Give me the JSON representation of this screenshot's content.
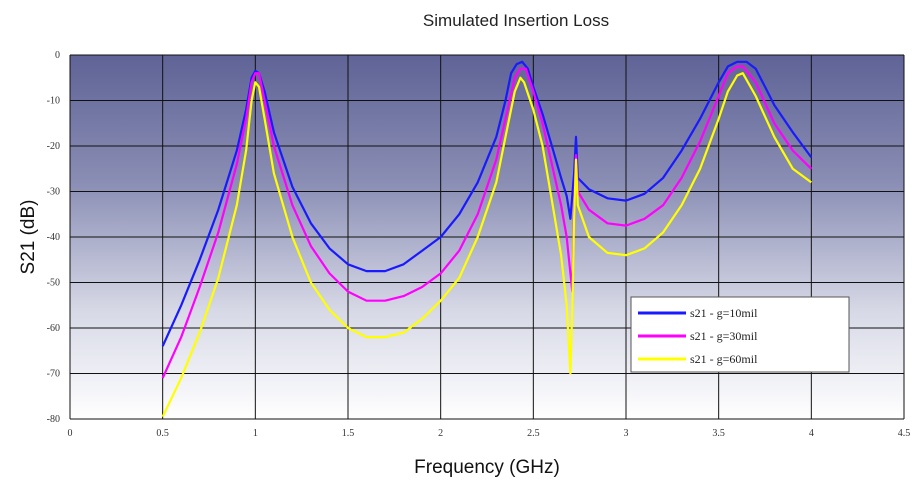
{
  "chart_data": {
    "type": "line",
    "title": "Simulated Insertion Loss",
    "xlabel": "Frequency (GHz)",
    "ylabel": "S21 (dB)",
    "xlim": [
      0,
      4.5
    ],
    "ylim": [
      -80,
      0
    ],
    "xticks": [
      "0",
      "0.5",
      "1",
      "1.5",
      "2",
      "2.5",
      "3",
      "3.5",
      "4",
      "4.5"
    ],
    "yticks": [
      "0",
      "-10",
      "-20",
      "-30",
      "-40",
      "-50",
      "-60",
      "-70",
      "-80"
    ],
    "grid": true,
    "legend_position": "bottom-right",
    "background": "gradient: slate blue at top fading to white at bottom",
    "series": [
      {
        "name": "s21 - g=10mil",
        "color": "#1a1aff",
        "points": [
          [
            0.5,
            -64
          ],
          [
            0.6,
            -55
          ],
          [
            0.7,
            -45
          ],
          [
            0.8,
            -34
          ],
          [
            0.9,
            -21
          ],
          [
            0.95,
            -12
          ],
          [
            0.98,
            -5
          ],
          [
            1.0,
            -3.5
          ],
          [
            1.02,
            -4
          ],
          [
            1.05,
            -8
          ],
          [
            1.1,
            -17
          ],
          [
            1.2,
            -29
          ],
          [
            1.3,
            -37
          ],
          [
            1.4,
            -42.5
          ],
          [
            1.5,
            -46
          ],
          [
            1.6,
            -47.5
          ],
          [
            1.7,
            -47.5
          ],
          [
            1.8,
            -46
          ],
          [
            1.9,
            -43
          ],
          [
            2.0,
            -40
          ],
          [
            2.1,
            -35
          ],
          [
            2.2,
            -28
          ],
          [
            2.3,
            -18
          ],
          [
            2.35,
            -10
          ],
          [
            2.38,
            -4
          ],
          [
            2.41,
            -2
          ],
          [
            2.44,
            -1.5
          ],
          [
            2.47,
            -3
          ],
          [
            2.5,
            -7
          ],
          [
            2.55,
            -13
          ],
          [
            2.6,
            -20
          ],
          [
            2.65,
            -27
          ],
          [
            2.68,
            -31
          ],
          [
            2.7,
            -36
          ],
          [
            2.72,
            -26
          ],
          [
            2.73,
            -18
          ],
          [
            2.74,
            -27
          ],
          [
            2.8,
            -29.5
          ],
          [
            2.9,
            -31.5
          ],
          [
            3.0,
            -32
          ],
          [
            3.1,
            -30.5
          ],
          [
            3.2,
            -27
          ],
          [
            3.3,
            -21
          ],
          [
            3.4,
            -14
          ],
          [
            3.5,
            -6
          ],
          [
            3.55,
            -2.5
          ],
          [
            3.6,
            -1.5
          ],
          [
            3.65,
            -1.5
          ],
          [
            3.7,
            -3
          ],
          [
            3.75,
            -7
          ],
          [
            3.8,
            -11
          ],
          [
            3.9,
            -17
          ],
          [
            4.0,
            -22.5
          ]
        ]
      },
      {
        "name": "s21 - g=30mil",
        "color": "#ff00ff",
        "points": [
          [
            0.5,
            -71
          ],
          [
            0.6,
            -62
          ],
          [
            0.7,
            -51
          ],
          [
            0.8,
            -39
          ],
          [
            0.9,
            -24
          ],
          [
            0.95,
            -14
          ],
          [
            0.98,
            -6
          ],
          [
            1.0,
            -4
          ],
          [
            1.02,
            -4
          ],
          [
            1.05,
            -10
          ],
          [
            1.1,
            -20
          ],
          [
            1.2,
            -33
          ],
          [
            1.3,
            -42
          ],
          [
            1.4,
            -48
          ],
          [
            1.5,
            -52
          ],
          [
            1.6,
            -54
          ],
          [
            1.7,
            -54
          ],
          [
            1.8,
            -53
          ],
          [
            1.9,
            -51
          ],
          [
            2.0,
            -48
          ],
          [
            2.1,
            -43
          ],
          [
            2.2,
            -35
          ],
          [
            2.3,
            -23
          ],
          [
            2.35,
            -14
          ],
          [
            2.4,
            -5
          ],
          [
            2.43,
            -3
          ],
          [
            2.46,
            -3
          ],
          [
            2.5,
            -8
          ],
          [
            2.55,
            -15
          ],
          [
            2.6,
            -24
          ],
          [
            2.65,
            -33
          ],
          [
            2.68,
            -40
          ],
          [
            2.7,
            -48
          ],
          [
            2.71,
            -52
          ],
          [
            2.72,
            -34
          ],
          [
            2.73,
            -22
          ],
          [
            2.74,
            -30
          ],
          [
            2.8,
            -34
          ],
          [
            2.9,
            -37
          ],
          [
            3.0,
            -37.5
          ],
          [
            3.1,
            -36
          ],
          [
            3.2,
            -33
          ],
          [
            3.3,
            -27
          ],
          [
            3.4,
            -19
          ],
          [
            3.5,
            -9
          ],
          [
            3.55,
            -4
          ],
          [
            3.6,
            -2.5
          ],
          [
            3.63,
            -2.5
          ],
          [
            3.7,
            -6
          ],
          [
            3.8,
            -15
          ],
          [
            3.9,
            -21
          ],
          [
            4.0,
            -25
          ]
        ]
      },
      {
        "name": "s21 - g=60mil",
        "color": "#ffff00",
        "points": [
          [
            0.5,
            -79.5
          ],
          [
            0.6,
            -71
          ],
          [
            0.7,
            -61
          ],
          [
            0.8,
            -49
          ],
          [
            0.9,
            -33
          ],
          [
            0.95,
            -21
          ],
          [
            0.98,
            -10
          ],
          [
            1.0,
            -6
          ],
          [
            1.02,
            -7
          ],
          [
            1.05,
            -14
          ],
          [
            1.1,
            -26
          ],
          [
            1.2,
            -40
          ],
          [
            1.3,
            -50
          ],
          [
            1.4,
            -56
          ],
          [
            1.5,
            -60
          ],
          [
            1.6,
            -62
          ],
          [
            1.7,
            -62
          ],
          [
            1.8,
            -61
          ],
          [
            1.9,
            -58
          ],
          [
            2.0,
            -54
          ],
          [
            2.1,
            -49
          ],
          [
            2.2,
            -40
          ],
          [
            2.3,
            -28
          ],
          [
            2.35,
            -18
          ],
          [
            2.4,
            -8
          ],
          [
            2.43,
            -5
          ],
          [
            2.45,
            -6
          ],
          [
            2.5,
            -12
          ],
          [
            2.55,
            -20
          ],
          [
            2.6,
            -32
          ],
          [
            2.65,
            -44
          ],
          [
            2.68,
            -55
          ],
          [
            2.7,
            -70
          ],
          [
            2.71,
            -56
          ],
          [
            2.72,
            -36
          ],
          [
            2.73,
            -23
          ],
          [
            2.74,
            -33
          ],
          [
            2.8,
            -40
          ],
          [
            2.9,
            -43.5
          ],
          [
            3.0,
            -44
          ],
          [
            3.1,
            -42.5
          ],
          [
            3.2,
            -39
          ],
          [
            3.3,
            -33
          ],
          [
            3.4,
            -25
          ],
          [
            3.5,
            -14
          ],
          [
            3.55,
            -8
          ],
          [
            3.6,
            -4.5
          ],
          [
            3.63,
            -4
          ],
          [
            3.7,
            -9
          ],
          [
            3.8,
            -18
          ],
          [
            3.9,
            -25
          ],
          [
            4.0,
            -28
          ]
        ]
      }
    ]
  }
}
